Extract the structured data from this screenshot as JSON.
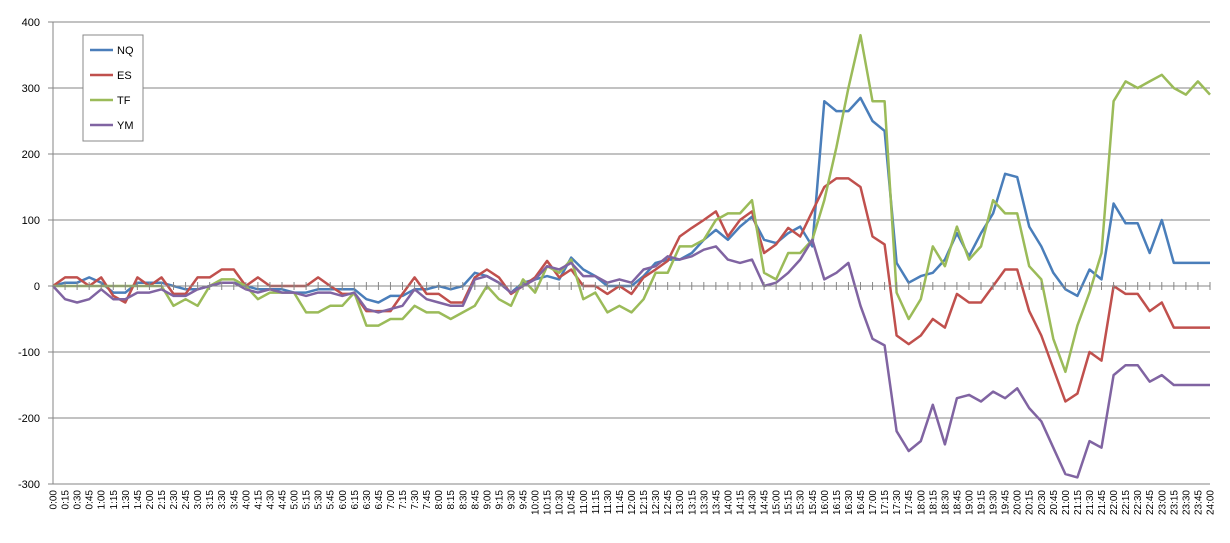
{
  "chart_data": {
    "type": "line",
    "categories": [
      "0:00",
      "0:15",
      "0:30",
      "0:45",
      "1:00",
      "1:15",
      "1:30",
      "1:45",
      "2:00",
      "2:15",
      "2:30",
      "2:45",
      "3:00",
      "3:15",
      "3:30",
      "3:45",
      "4:00",
      "4:15",
      "4:30",
      "4:45",
      "5:00",
      "5:15",
      "5:30",
      "5:45",
      "6:00",
      "6:15",
      "6:30",
      "6:45",
      "7:00",
      "7:15",
      "7:30",
      "7:45",
      "8:00",
      "8:15",
      "8:30",
      "8:45",
      "9:00",
      "9:15",
      "9:30",
      "9:45",
      "10:00",
      "10:15",
      "10:30",
      "10:45",
      "11:00",
      "11:15",
      "11:30",
      "11:45",
      "12:00",
      "12:15",
      "12:30",
      "12:45",
      "13:00",
      "13:15",
      "13:30",
      "13:45",
      "14:00",
      "14:15",
      "14:30",
      "14:45",
      "15:00",
      "15:15",
      "15:30",
      "15:45",
      "16:00",
      "16:15",
      "16:30",
      "16:45",
      "17:00",
      "17:15",
      "17:30",
      "17:45",
      "18:00",
      "18:15",
      "18:30",
      "18:45",
      "19:00",
      "19:15",
      "19:30",
      "19:45",
      "20:00",
      "20:15",
      "20:30",
      "20:45",
      "21:00",
      "21:15",
      "21:30",
      "21:45",
      "22:00",
      "22:15",
      "22:30",
      "22:45",
      "23:00",
      "23:15",
      "23:30",
      "23:45",
      "24:00"
    ],
    "series": [
      {
        "name": "NQ",
        "color": "#4a7eba",
        "values": [
          0,
          5,
          5,
          13,
          5,
          -10,
          -10,
          5,
          5,
          5,
          0,
          -5,
          -5,
          0,
          5,
          5,
          0,
          -5,
          -5,
          -5,
          -10,
          -10,
          -5,
          -5,
          -5,
          -5,
          -20,
          -25,
          -15,
          -15,
          -5,
          -5,
          0,
          -5,
          0,
          20,
          15,
          5,
          -10,
          5,
          10,
          15,
          10,
          43,
          25,
          15,
          0,
          0,
          0,
          15,
          35,
          40,
          40,
          50,
          70,
          85,
          70,
          90,
          105,
          70,
          65,
          80,
          90,
          60,
          280,
          265,
          265,
          285,
          250,
          235,
          35,
          5,
          15,
          20,
          40,
          80,
          45,
          80,
          110,
          170,
          165,
          90,
          60,
          20,
          -5,
          -15,
          25,
          10,
          125,
          95,
          95,
          50,
          100,
          35,
          35,
          35,
          35
        ]
      },
      {
        "name": "ES",
        "color": "#c0504d",
        "values": [
          0,
          13,
          13,
          0,
          13,
          -15,
          -25,
          13,
          0,
          13,
          -12,
          -12,
          13,
          13,
          25,
          25,
          0,
          13,
          0,
          0,
          0,
          0,
          13,
          0,
          -12,
          -12,
          -38,
          -38,
          -38,
          -12,
          13,
          -12,
          -12,
          -25,
          -25,
          13,
          25,
          13,
          -12,
          0,
          13,
          38,
          13,
          25,
          0,
          0,
          -12,
          0,
          -12,
          13,
          25,
          38,
          75,
          88,
          100,
          113,
          75,
          100,
          113,
          50,
          63,
          88,
          75,
          113,
          150,
          163,
          163,
          150,
          75,
          63,
          -75,
          -88,
          -75,
          -50,
          -63,
          -12,
          -25,
          -25,
          0,
          25,
          25,
          -38,
          -75,
          -125,
          -175,
          -163,
          -100,
          -113,
          0,
          -12,
          -12,
          -38,
          -25,
          -63,
          -63,
          -63,
          -63
        ]
      },
      {
        "name": "TF",
        "color": "#9bbb59",
        "values": [
          0,
          0,
          0,
          0,
          0,
          0,
          0,
          0,
          0,
          0,
          -30,
          -20,
          -30,
          0,
          10,
          10,
          0,
          -20,
          -10,
          -10,
          -10,
          -40,
          -40,
          -30,
          -30,
          -10,
          -60,
          -60,
          -50,
          -50,
          -30,
          -40,
          -40,
          -50,
          -40,
          -30,
          0,
          -20,
          -30,
          10,
          -10,
          30,
          20,
          40,
          -20,
          -10,
          -40,
          -30,
          -40,
          -20,
          20,
          20,
          60,
          60,
          70,
          100,
          110,
          110,
          130,
          20,
          10,
          50,
          50,
          70,
          130,
          210,
          300,
          380,
          280,
          280,
          -10,
          -50,
          -20,
          60,
          30,
          90,
          40,
          60,
          130,
          110,
          110,
          30,
          10,
          -80,
          -130,
          -60,
          -10,
          50,
          280,
          310,
          300,
          310,
          320,
          300,
          290,
          310,
          290
        ]
      },
      {
        "name": "YM",
        "color": "#8064a2",
        "values": [
          0,
          -20,
          -25,
          -20,
          -5,
          -20,
          -20,
          -10,
          -10,
          -5,
          -15,
          -15,
          -5,
          0,
          5,
          5,
          -5,
          -10,
          -5,
          -10,
          -10,
          -15,
          -10,
          -10,
          -15,
          -10,
          -35,
          -40,
          -35,
          -30,
          -5,
          -20,
          -25,
          -30,
          -30,
          10,
          15,
          5,
          -10,
          0,
          10,
          30,
          25,
          35,
          15,
          15,
          5,
          10,
          5,
          25,
          30,
          45,
          40,
          45,
          55,
          60,
          40,
          35,
          40,
          0,
          5,
          20,
          40,
          70,
          10,
          20,
          35,
          -30,
          -80,
          -90,
          -220,
          -250,
          -235,
          -180,
          -240,
          -170,
          -165,
          -175,
          -160,
          -170,
          -155,
          -185,
          -205,
          -245,
          -285,
          -290,
          -235,
          -245,
          -135,
          -120,
          -120,
          -145,
          -135,
          -150,
          -150,
          -150,
          -150
        ]
      }
    ],
    "ylim": [
      -300,
      400
    ],
    "yticks": [
      -300,
      -200,
      -100,
      0,
      100,
      200,
      300,
      400
    ],
    "grid": true
  }
}
